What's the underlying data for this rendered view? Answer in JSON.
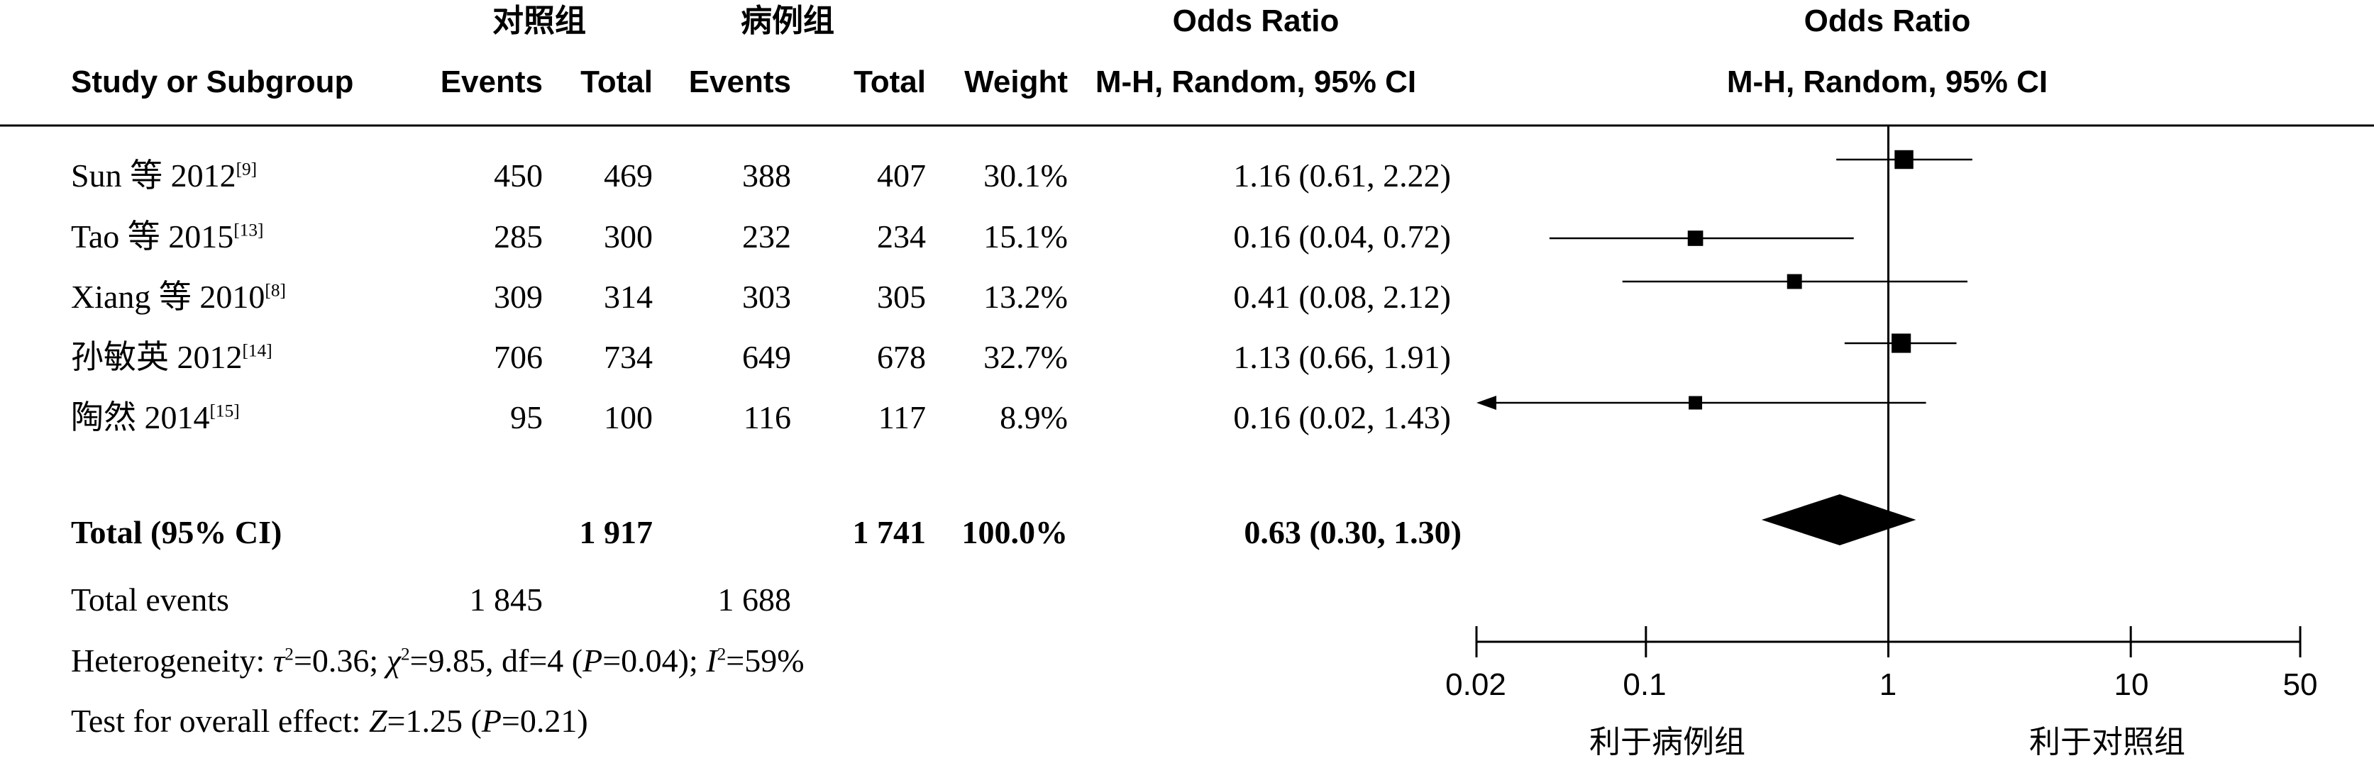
{
  "group_headers": {
    "control": "对照组",
    "case": "病例组"
  },
  "columns": {
    "study": "Study or Subgroup",
    "events_control": "Events",
    "total_control": "Total",
    "events_case": "Events",
    "total_case": "Total",
    "weight": "Weight",
    "or_title": "Odds Ratio",
    "or_method": "M-H, Random, 95% CI",
    "plot_title": "Odds Ratio",
    "plot_method": "M-H, Random, 95% CI"
  },
  "studies": [
    {
      "name": "Sun 等 2012",
      "ref": "[9]",
      "events_control": "450",
      "total_control": "469",
      "events_case": "388",
      "total_case": "407",
      "weight": "30.1%",
      "ci_text": "1.16 (0.61, 2.22)"
    },
    {
      "name": "Tao 等 2015",
      "ref": "[13]",
      "events_control": "285",
      "total_control": "300",
      "events_case": "232",
      "total_case": "234",
      "weight": "15.1%",
      "ci_text": "0.16 (0.04, 0.72)"
    },
    {
      "name": "Xiang 等 2010",
      "ref": "[8]",
      "events_control": "309",
      "total_control": "314",
      "events_case": "303",
      "total_case": "305",
      "weight": "13.2%",
      "ci_text": "0.41 (0.08, 2.12)"
    },
    {
      "name": "孙敏英 2012",
      "ref": "[14]",
      "events_control": "706",
      "total_control": "734",
      "events_case": "649",
      "total_case": "678",
      "weight": "32.7%",
      "ci_text": "1.13 (0.66, 1.91)"
    },
    {
      "name": "陶然 2014",
      "ref": "[15]",
      "events_control": "95",
      "total_control": "100",
      "events_case": "116",
      "total_case": "117",
      "weight": "8.9%",
      "ci_text": "0.16 (0.02, 1.43)"
    }
  ],
  "total": {
    "label": "Total (95% CI)",
    "total_control": "1 917",
    "total_case": "1 741",
    "weight": "100.0%",
    "ci_text": "0.63 (0.30, 1.30)"
  },
  "total_events": {
    "label": "Total events",
    "control": "1 845",
    "case": "1 688"
  },
  "heterogeneity": {
    "prefix": "Heterogeneity: ",
    "tau_sym": "τ",
    "tau_rest": "=0.36; ",
    "chi_sym": "χ",
    "chi_rest": "=9.85, df=4 (",
    "p_sym": "P",
    "p_rest": "=0.04); ",
    "i_sym": "I",
    "i_rest": "=59%",
    "sq": "2"
  },
  "overall_effect": {
    "prefix": "Test for overall effect: ",
    "z_sym": "Z",
    "z_rest": "=1.25 (",
    "p_sym": "P",
    "p_rest": "=0.21)"
  },
  "axis": {
    "ticks": [
      "0.02",
      "0.1",
      "1",
      "10",
      "50"
    ],
    "left_label": "利于病例组",
    "right_label": "利于对照组"
  },
  "chart_data": {
    "type": "forest",
    "scale": "log",
    "xlim": [
      0.02,
      50
    ],
    "xticks": [
      0.02,
      0.1,
      1,
      10,
      50
    ],
    "reference_line": 1,
    "studies": [
      {
        "name": "Sun 等 2012",
        "or": 1.16,
        "lower": 0.61,
        "upper": 2.22,
        "weight": 30.1
      },
      {
        "name": "Tao 等 2015",
        "or": 0.16,
        "lower": 0.04,
        "upper": 0.72,
        "weight": 15.1
      },
      {
        "name": "Xiang 等 2010",
        "or": 0.41,
        "lower": 0.08,
        "upper": 2.12,
        "weight": 13.2
      },
      {
        "name": "孙敏英 2012",
        "or": 1.13,
        "lower": 0.66,
        "upper": 1.91,
        "weight": 32.7
      },
      {
        "name": "陶然 2014",
        "or": 0.16,
        "lower": 0.02,
        "upper": 1.43,
        "weight": 8.9
      }
    ],
    "pooled": {
      "or": 0.63,
      "lower": 0.3,
      "upper": 1.3
    }
  }
}
